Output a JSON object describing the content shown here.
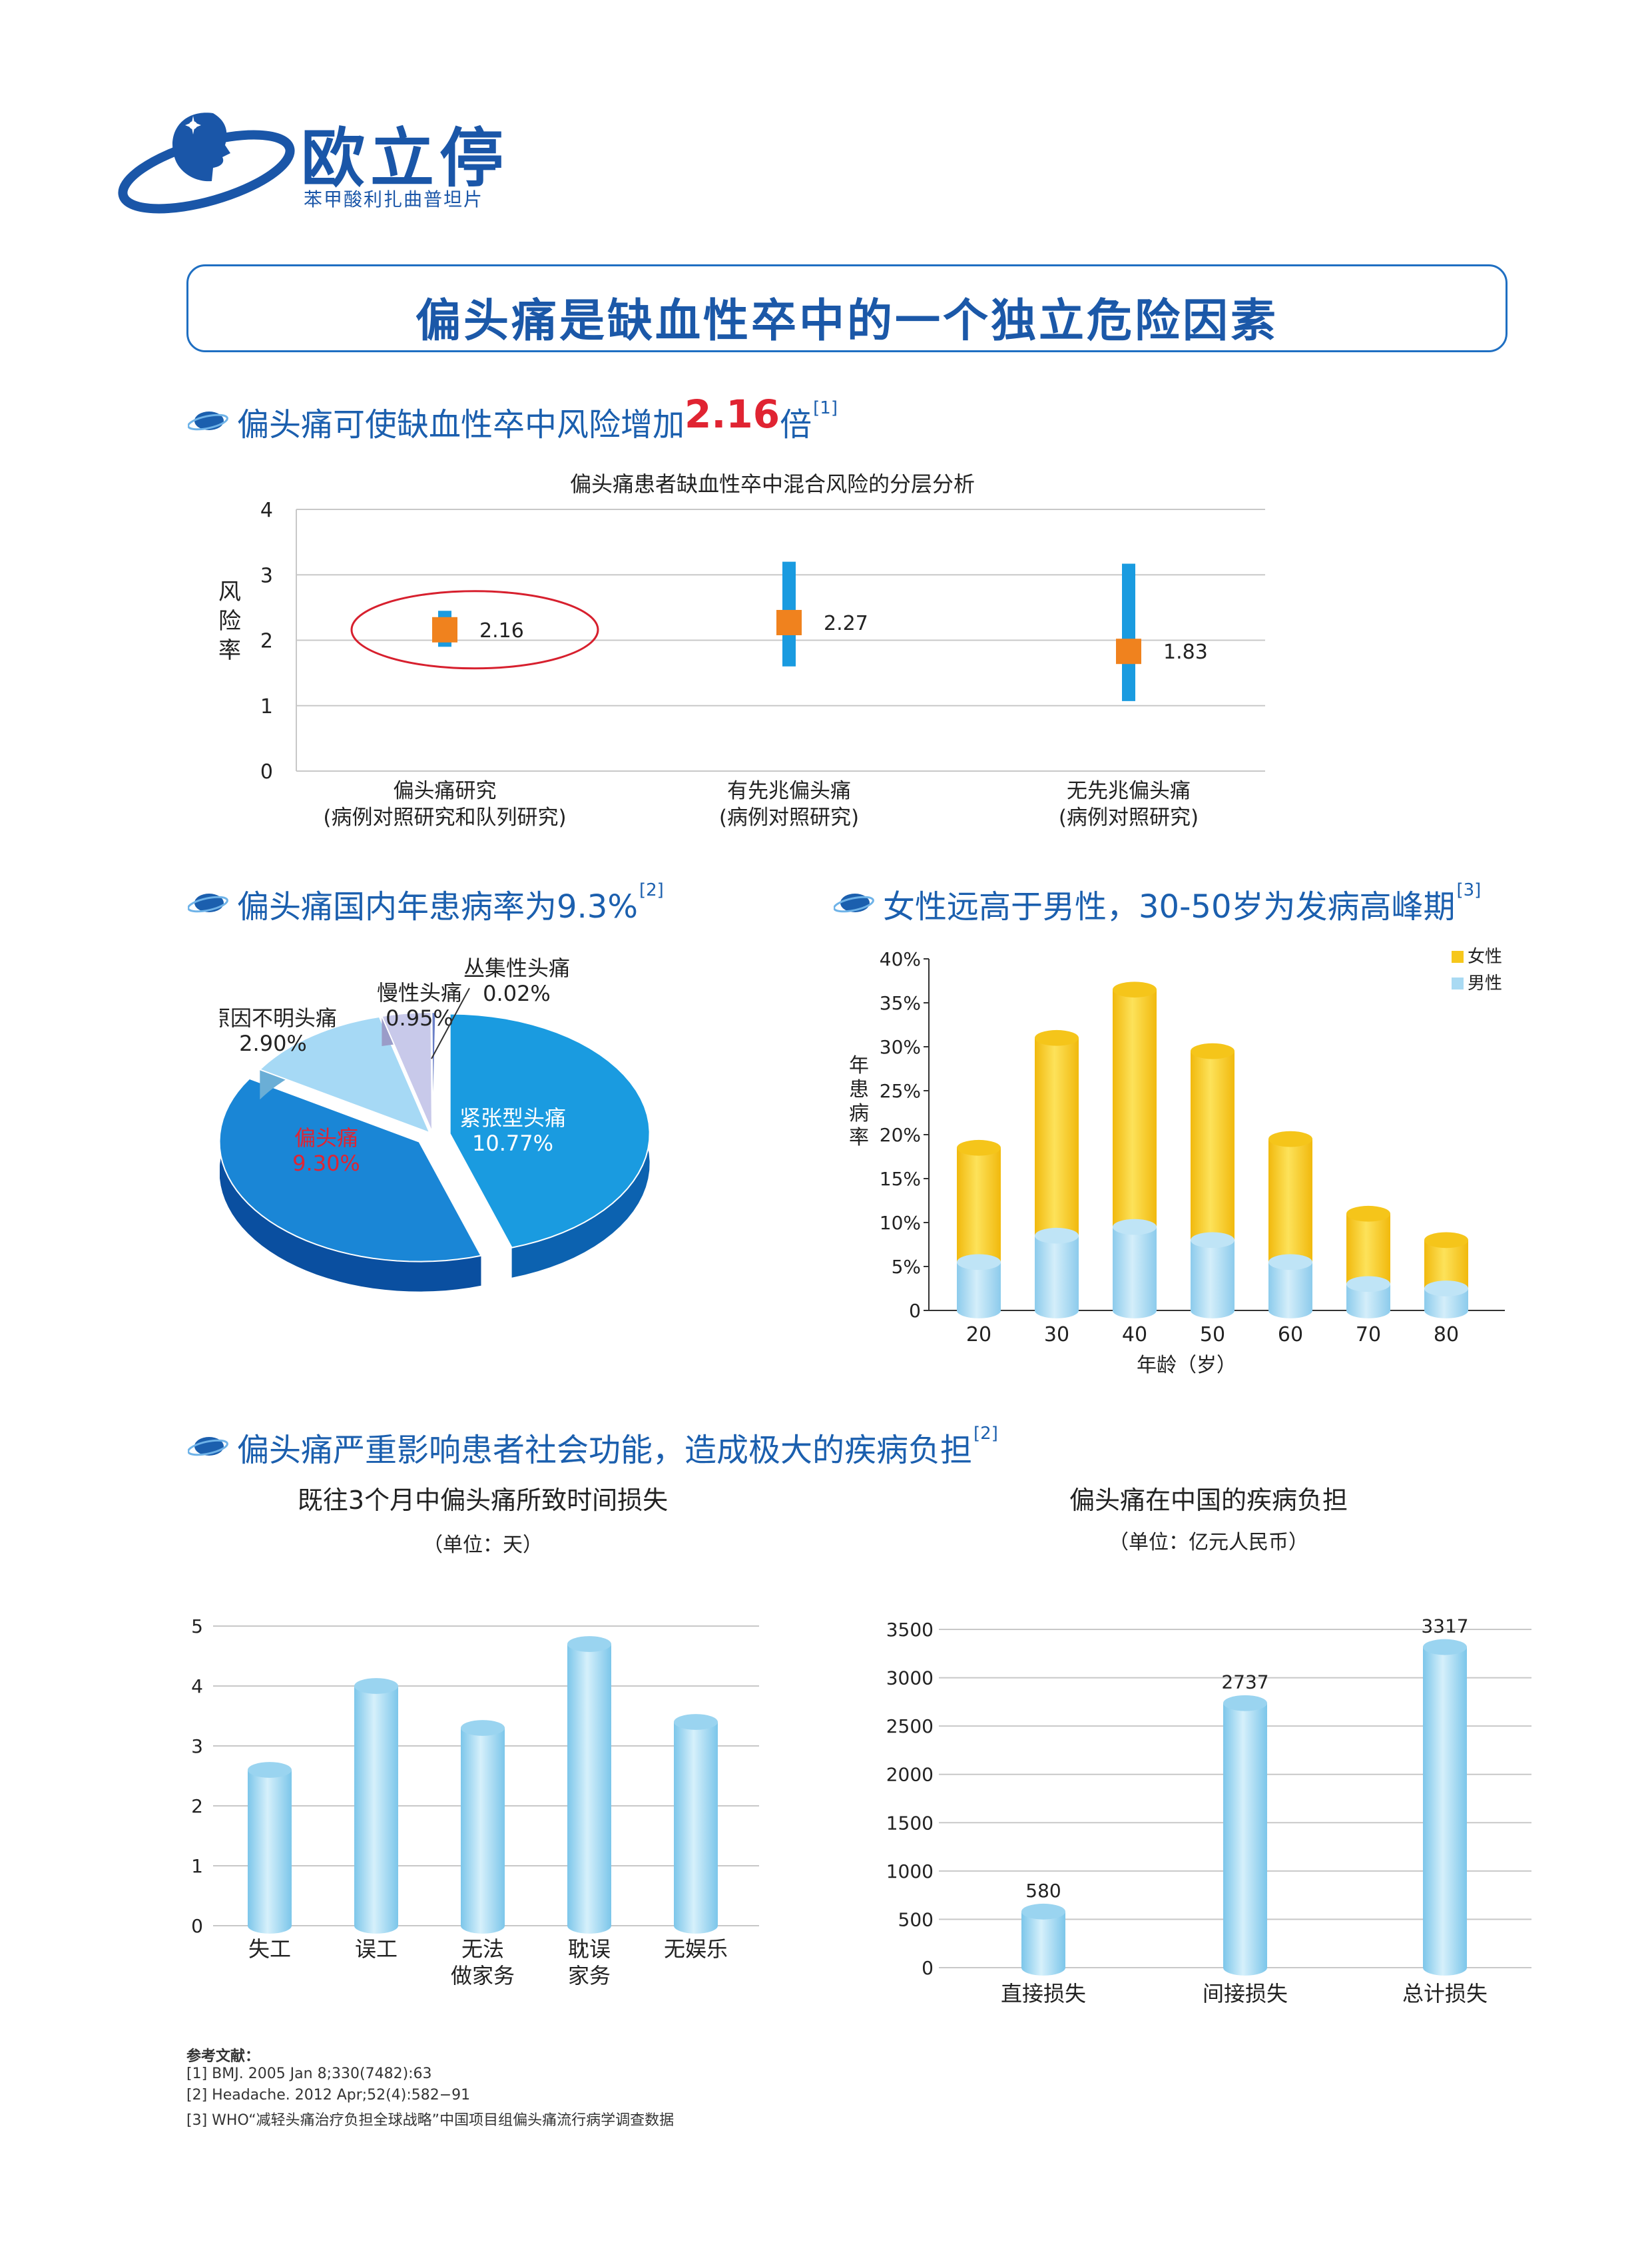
{
  "brand": {
    "name": "欧立停",
    "subtitle": "苯甲酸利扎曲普坦片"
  },
  "banner": {
    "title": "偏头痛是缺血性卒中的一个独立危险因素"
  },
  "sections": {
    "s1": {
      "prefix": "偏头痛可使缺血性卒中风险增加",
      "highlight": "2.16",
      "suffix": "倍",
      "ref": "[1]"
    },
    "s2": {
      "text": "偏头痛国内年患病率为9.3%",
      "ref": "[2]"
    },
    "s3": {
      "text": "女性远高于男性，30-50岁为发病高峰期",
      "ref": "[3]"
    },
    "s4": {
      "text": "偏头痛严重影响患者社会功能，造成极大的疾病负担",
      "ref": "[2]"
    }
  },
  "colors": {
    "brand_blue": "#1b5fae",
    "highlight_red": "#e02432",
    "bar_blue": "#1a9be0",
    "marker_orange": "#f0821e",
    "female_yellow": "#f6c71b",
    "male_blue": "#a9daf3"
  },
  "chart_data": [
    {
      "type": "scatter",
      "title": "偏头痛患者缺血性卒中混合风险的分层分析",
      "ylabel": "风险率",
      "ylim": [
        0,
        4
      ],
      "yticks": [
        "0",
        "1",
        "2",
        "3",
        "4"
      ],
      "categories": [
        "偏头痛研究\n(病例对照研究和队列研究)",
        "有先兆偏头痛\n(病例对照研究)",
        "无先兆偏头痛\n(病例对照研究)"
      ],
      "values": [
        2.16,
        2.27,
        1.83
      ],
      "value_labels": [
        "2.16",
        "2.27",
        "1.83"
      ],
      "ci_low": [
        1.9,
        1.6,
        1.07
      ],
      "ci_high": [
        2.45,
        3.2,
        3.17
      ],
      "highlighted": 0,
      "grid": true
    },
    {
      "type": "pie",
      "slices": [
        {
          "label": "紧张型头痛",
          "value_label": "10.77%",
          "value": 10.77
        },
        {
          "label": "偏头痛",
          "value_label": "9.30%",
          "value": 9.3
        },
        {
          "label": "原因不明头痛",
          "value_label": "2.90%",
          "value": 2.9
        },
        {
          "label": "慢性头痛",
          "value_label": "0.95%",
          "value": 0.95
        },
        {
          "label": "丛集性头痛",
          "value_label": "0.02%",
          "value": 0.02
        }
      ]
    },
    {
      "type": "bar",
      "stacked": true,
      "xlabel": "年龄（岁）",
      "ylabel": "年患病率",
      "ylim": [
        0,
        40
      ],
      "yticks": [
        "0",
        "5%",
        "10%",
        "15%",
        "20%",
        "25%",
        "30%",
        "35%",
        "40%"
      ],
      "categories": [
        "20",
        "30",
        "40",
        "50",
        "60",
        "70",
        "80"
      ],
      "series": [
        {
          "name": "男性",
          "values": [
            5.5,
            8.5,
            9.5,
            8.0,
            5.5,
            3.0,
            2.5
          ]
        },
        {
          "name": "女性",
          "values": [
            13.0,
            22.5,
            27.0,
            21.5,
            14.0,
            8.0,
            5.5
          ]
        }
      ],
      "legend": "top-right"
    },
    {
      "type": "bar",
      "title": "既往3个月中偏头痛所致时间损失",
      "unit": "（单位：天）",
      "ylim": [
        0,
        5
      ],
      "yticks": [
        "0",
        "1",
        "2",
        "3",
        "4",
        "5"
      ],
      "categories": [
        "失工",
        "误工",
        "无法\n做家务",
        "耽误\n家务",
        "无娱乐"
      ],
      "values": [
        2.6,
        4.0,
        3.3,
        4.7,
        3.4
      ],
      "grid": true
    },
    {
      "type": "bar",
      "title": "偏头痛在中国的疾病负担",
      "unit": "（单位：亿元人民币）",
      "ylim": [
        0,
        3500
      ],
      "yticks": [
        "0",
        "500",
        "1000",
        "1500",
        "2000",
        "2500",
        "3000",
        "3500"
      ],
      "categories": [
        "直接损失",
        "间接损失",
        "总计损失"
      ],
      "values": [
        580,
        2737,
        3317
      ],
      "value_labels": [
        "580",
        "2737",
        "3317"
      ],
      "grid": true
    }
  ],
  "references": {
    "title": "参考文献：",
    "items": [
      "[1] BMJ. 2005 Jan 8;330(7482):63",
      "[2] Headache. 2012 Apr;52(4):582−91",
      "[3] WHO“减轻头痛治疗负担全球战略”中国项目组偏头痛流行病学调查数据"
    ]
  }
}
